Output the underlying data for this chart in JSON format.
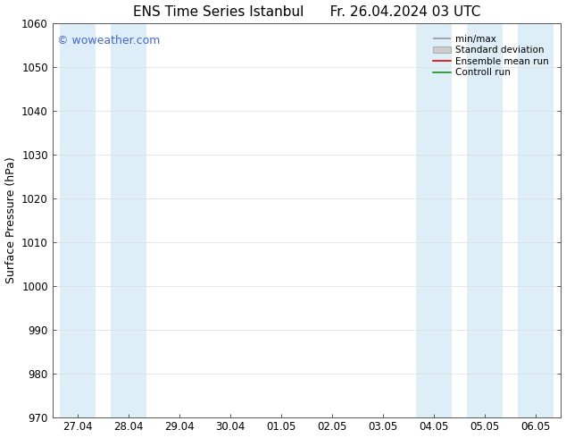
{
  "title_left": "ENS Time Series Istanbul",
  "title_right": "Fr. 26.04.2024 03 UTC",
  "ylabel": "Surface Pressure (hPa)",
  "ylim": [
    970,
    1060
  ],
  "yticks": [
    970,
    980,
    990,
    1000,
    1010,
    1020,
    1030,
    1040,
    1050,
    1060
  ],
  "background_color": "#ffffff",
  "plot_bg_color": "#ffffff",
  "shaded_band_color": "#ddeef8",
  "watermark": "© woweather.com",
  "watermark_color": "#4466cc",
  "legend_entries": [
    "min/max",
    "Standard deviation",
    "Ensemble mean run",
    "Controll run"
  ],
  "legend_line_colors": [
    "#aaaaaa",
    "#cccccc",
    "#ff0000",
    "#228b22"
  ],
  "x_tick_labels": [
    "27.04",
    "28.04",
    "29.04",
    "30.04",
    "01.05",
    "02.05",
    "03.05",
    "04.05",
    "05.05",
    "06.05"
  ],
  "shaded_band_indices": [
    0,
    1,
    7,
    8,
    9
  ],
  "title_fontsize": 11,
  "tick_fontsize": 8.5,
  "ylabel_fontsize": 9,
  "watermark_fontsize": 9
}
